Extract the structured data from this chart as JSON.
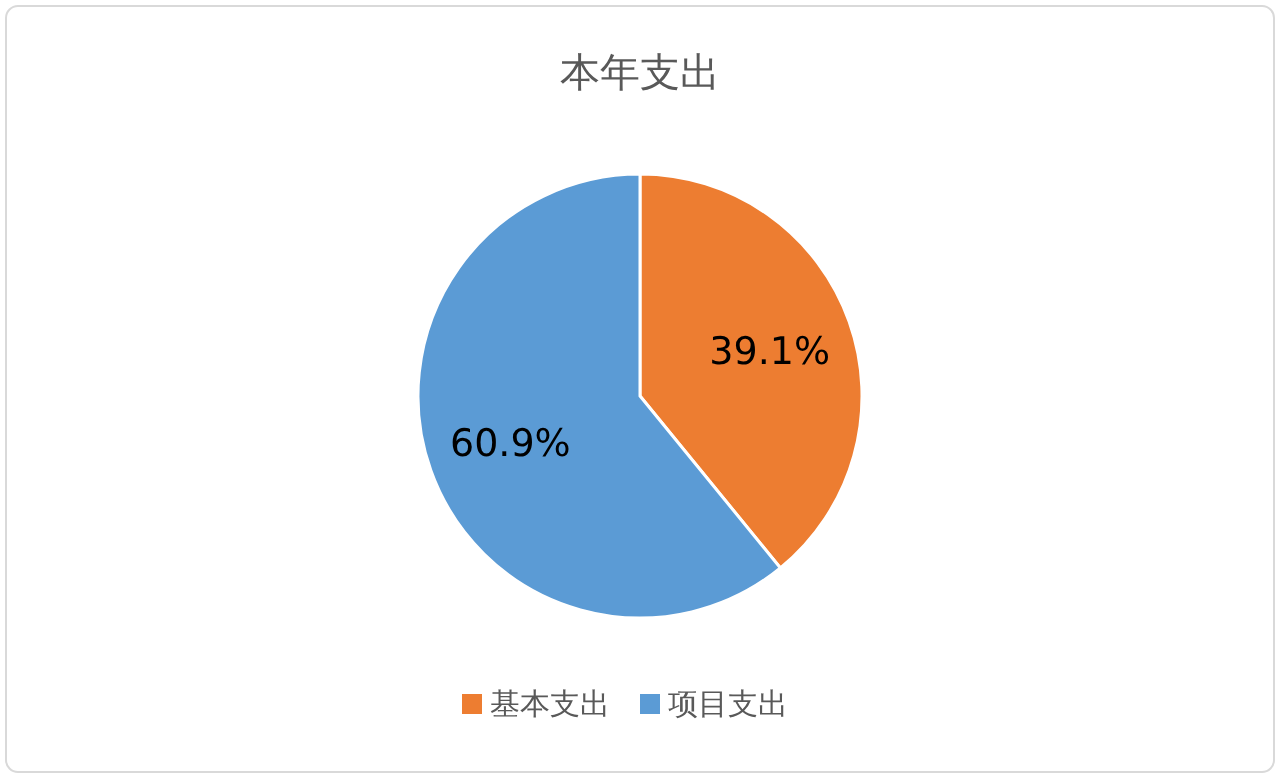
{
  "chart_data": {
    "type": "pie",
    "title": "本年支出",
    "categories": [
      "基本支出",
      "项目支出"
    ],
    "values": [
      39.1,
      60.9
    ],
    "colors": [
      "#ed7d31",
      "#5b9bd5"
    ],
    "value_labels": [
      "39.1%",
      "60.9%"
    ],
    "legend": "bottom"
  }
}
